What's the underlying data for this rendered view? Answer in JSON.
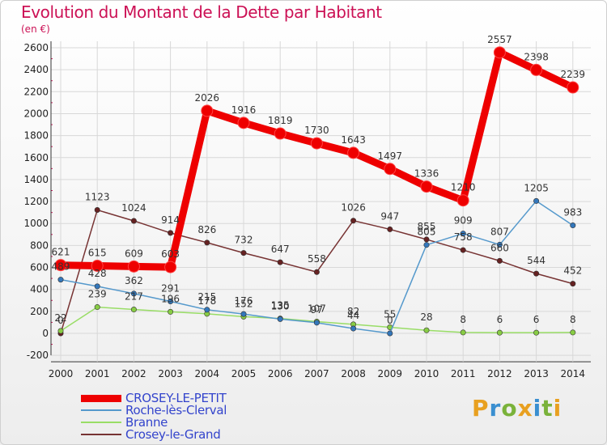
{
  "title": "Evolution du Montant de la Dette par Habitant",
  "unit": "(en €)",
  "logo": {
    "text": "Proxiti",
    "letters": [
      {
        "ch": "P",
        "color": "#e8a020"
      },
      {
        "ch": "r",
        "color": "#3a8fd0"
      },
      {
        "ch": "o",
        "color": "#7ab23a"
      },
      {
        "ch": "x",
        "color": "#e8a020"
      },
      {
        "ch": "i",
        "color": "#3a8fd0"
      },
      {
        "ch": "t",
        "color": "#7ab23a"
      },
      {
        "ch": "i",
        "color": "#e8a020"
      }
    ]
  },
  "chart_data": {
    "type": "line",
    "title": "Evolution du Montant de la Dette par Habitant",
    "ylabel": "(en €)",
    "xlabel": "",
    "x": [
      2000,
      2001,
      2002,
      2003,
      2004,
      2005,
      2006,
      2007,
      2008,
      2009,
      2010,
      2011,
      2012,
      2013,
      2014
    ],
    "ylim": [
      -200,
      2600
    ],
    "yticks": [
      -200,
      0,
      200,
      400,
      600,
      800,
      1000,
      1200,
      1400,
      1600,
      1800,
      2000,
      2200,
      2400,
      2600
    ],
    "grid": true,
    "legend_position": "bottom-left",
    "series": [
      {
        "name": "CROSEY-LE-PETIT",
        "color": "#ee0000",
        "marker_color": "#ee0000",
        "width": "thick",
        "values": [
          621,
          615,
          609,
          603,
          2026,
          1916,
          1819,
          1730,
          1643,
          1497,
          1336,
          1210,
          2557,
          2398,
          2239
        ]
      },
      {
        "name": "Roche-lès-Clerval",
        "color": "#5599cc",
        "marker_color": "#3377bb",
        "width": "thin",
        "values": [
          489,
          428,
          362,
          291,
          215,
          176,
          130,
          97,
          44,
          0,
          805,
          909,
          807,
          1205,
          983
        ]
      },
      {
        "name": "Branne",
        "color": "#99dd66",
        "marker_color": "#88cc44",
        "width": "thin",
        "values": [
          22,
          239,
          217,
          196,
          178,
          152,
          135,
          107,
          82,
          55,
          28,
          8,
          6,
          6,
          8
        ]
      },
      {
        "name": "Crosey-le-Grand",
        "color": "#773333",
        "marker_color": "#662222",
        "width": "thin",
        "values": [
          0,
          1123,
          1024,
          914,
          826,
          732,
          647,
          558,
          1026,
          947,
          855,
          758,
          660,
          544,
          452
        ]
      }
    ]
  }
}
